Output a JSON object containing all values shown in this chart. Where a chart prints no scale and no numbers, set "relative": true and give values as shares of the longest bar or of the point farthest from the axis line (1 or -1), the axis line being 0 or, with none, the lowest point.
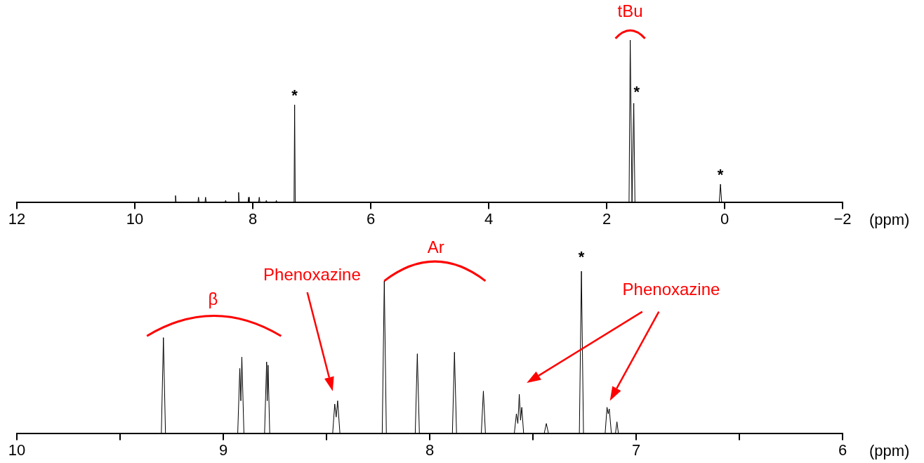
{
  "chart_data": [
    {
      "type": "line",
      "relative": true,
      "xlabel": "(ppm)",
      "xlim": [
        12,
        -2
      ],
      "xticks": [
        12,
        10,
        8,
        6,
        4,
        2,
        0,
        {
          "value": -2,
          "label": "−2"
        }
      ],
      "series": [
        {
          "color": "#000000",
          "x": [
            12,
            9.32,
            9.31,
            9.3,
            8.93,
            8.92,
            8.91,
            8.81,
            8.8,
            8.79,
            8.47,
            8.46,
            8.45,
            8.25,
            8.24,
            8.23,
            8.08,
            8.07,
            8.06,
            7.9,
            7.89,
            7.88,
            7.78,
            7.77,
            7.76,
            7.61,
            7.6,
            7.59,
            7.3,
            7.29,
            7.28,
            1.62,
            1.6,
            1.57,
            1.54,
            1.52,
            0.09,
            0.07,
            0.05,
            -2
          ],
          "values": [
            0,
            0,
            0.04,
            0,
            0,
            0.03,
            0,
            0,
            0.03,
            0,
            0,
            0.01,
            0,
            0,
            0.06,
            0,
            0,
            0.03,
            0,
            0,
            0.03,
            0,
            0,
            0.01,
            0,
            0,
            0.01,
            0,
            0,
            0.6,
            0,
            0,
            1,
            0,
            0.61,
            0,
            0,
            0.11,
            0,
            0
          ]
        }
      ],
      "annotations": [
        "tBu",
        "*",
        "*",
        "*"
      ]
    },
    {
      "type": "line",
      "relative": true,
      "xlabel": "(ppm)",
      "xlim": [
        10,
        6
      ],
      "xticks": [
        10,
        {
          "value": 9.5,
          "label": null
        },
        9,
        {
          "value": 8.5,
          "label": null
        },
        8,
        {
          "value": 7.5,
          "label": null
        },
        7,
        {
          "value": 6.5,
          "label": null
        },
        6
      ],
      "series": [
        {
          "color": "#000000",
          "x": [
            10,
            9.3,
            9.29,
            9.28,
            8.93,
            8.92,
            8.915,
            8.91,
            8.9,
            8.8,
            8.79,
            8.787,
            8.783,
            8.775,
            8.47,
            8.46,
            8.453,
            8.446,
            8.435,
            8.23,
            8.22,
            8.21,
            8.07,
            8.06,
            8.05,
            7.89,
            7.88,
            7.87,
            7.75,
            7.74,
            7.73,
            7.59,
            7.58,
            7.573,
            7.566,
            7.56,
            7.554,
            7.545,
            7.445,
            7.435,
            7.425,
            7.29,
            7.28,
            7.275,
            7.265,
            7.255,
            7.15,
            7.141,
            7.135,
            7.13,
            7.12,
            7.1,
            7.093,
            7.086,
            6
          ],
          "values": [
            0,
            0,
            0.59,
            0,
            0,
            0.4,
            0.2,
            0.47,
            0,
            0,
            0.44,
            0.2,
            0.42,
            0,
            0,
            0.18,
            0.1,
            0.2,
            0,
            0,
            0.94,
            0,
            0,
            0.49,
            0,
            0,
            0.5,
            0,
            0,
            0.26,
            0,
            0,
            0.12,
            0.06,
            0.24,
            0.08,
            0.16,
            0,
            0,
            0.06,
            0,
            0,
            0,
            0,
            1,
            0,
            0,
            0.16,
            0.12,
            0.15,
            0,
            0,
            0.07,
            0,
            0
          ]
        }
      ],
      "annotations": [
        "β",
        "Phenoxazine",
        "Ar",
        "*",
        "Phenoxazine"
      ]
    }
  ]
}
